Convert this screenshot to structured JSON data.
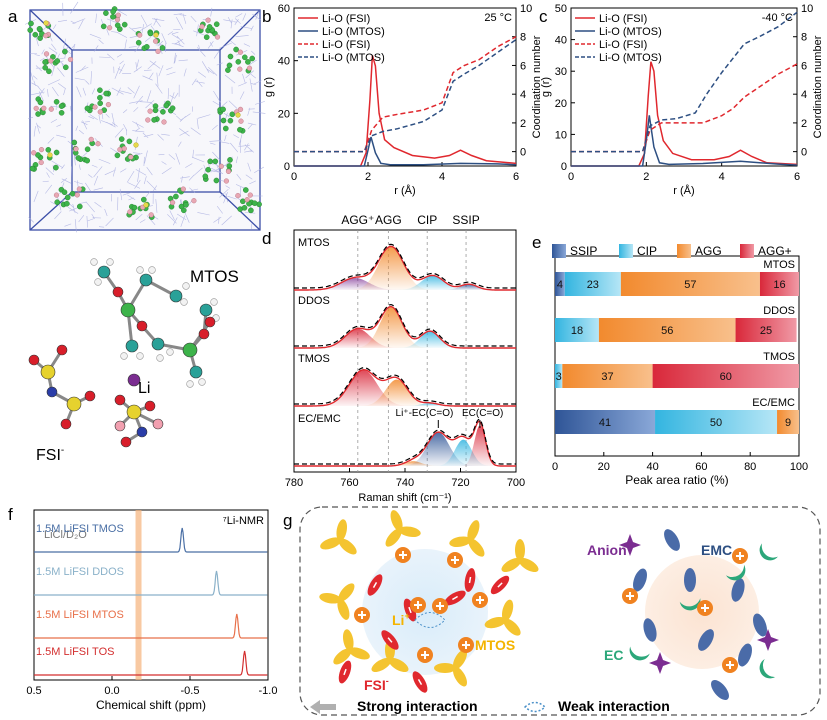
{
  "panel_labels": {
    "a": "a",
    "b": "b",
    "c": "c",
    "d": "d",
    "e": "e",
    "f": "f",
    "g": "g"
  },
  "colors": {
    "red": "#e0282e",
    "navy": "#2d4f82",
    "box": "#3c4fa8",
    "ssip": "#2f5597",
    "cip": "#33b5e0",
    "agg": "#f28a2e",
    "aggp": "#d9283a",
    "orange": "#f08220",
    "yellow": "#f4c430",
    "purple": "#7b2d91",
    "green": "#2ca77a",
    "nmr_tmos": "#4a6fa5",
    "nmr_ddos": "#8ab1c9",
    "nmr_mtos": "#e8704a",
    "nmr_tos": "#d32f2f"
  },
  "molecule_labels": {
    "mtos": "MTOS",
    "li": "Li",
    "fsi": "FSI",
    "fsi_sup": "-"
  },
  "chart_data": [
    {
      "id": "b",
      "type": "line",
      "title": "25 °C",
      "xlabel": "r (Å)",
      "ylabel": "g (r)",
      "y2label": "Coordination number",
      "xlim": [
        0,
        6
      ],
      "ylim": [
        0,
        60
      ],
      "y2lim": [
        -1,
        10
      ],
      "xticks": [
        0,
        2,
        4,
        6
      ],
      "yticks": [
        0,
        20,
        40,
        60
      ],
      "y2ticks": [
        0,
        2,
        4,
        6,
        8,
        10
      ],
      "legend": [
        "Li-O (FSI)",
        "Li-O (MTOS)",
        "Li-O (FSI)",
        "Li-O (MTOS)"
      ],
      "series": [
        {
          "name": "Li-O (FSI)",
          "axis": "left",
          "style": "solid",
          "color": "#e0282e",
          "x": [
            0,
            1.8,
            1.95,
            2.05,
            2.12,
            2.2,
            2.3,
            2.45,
            2.7,
            3.2,
            3.8,
            4.2,
            4.5,
            4.8,
            5.2,
            6
          ],
          "y": [
            0,
            0,
            5,
            25,
            42,
            38,
            20,
            10,
            7,
            4,
            3,
            4,
            6,
            4,
            2,
            1
          ]
        },
        {
          "name": "Li-O (MTOS)",
          "axis": "left",
          "style": "solid",
          "color": "#2d4f82",
          "x": [
            0,
            1.9,
            2.0,
            2.08,
            2.2,
            2.35,
            2.6,
            3.5,
            4.5,
            5.5,
            6
          ],
          "y": [
            0,
            0,
            6,
            11,
            5,
            1,
            0.5,
            0.5,
            1,
            0.8,
            0.5
          ]
        },
        {
          "name": "Li-O (FSI)",
          "axis": "right",
          "style": "dashed",
          "color": "#e0282e",
          "x": [
            0,
            1.9,
            2.1,
            2.4,
            2.8,
            3.5,
            4.0,
            4.3,
            4.6,
            5.0,
            5.5,
            6
          ],
          "y": [
            0,
            0,
            1.5,
            2.4,
            2.6,
            2.9,
            3.4,
            5.5,
            6.0,
            6.4,
            7.3,
            8.0
          ]
        },
        {
          "name": "Li-O (MTOS)",
          "axis": "right",
          "style": "dashed",
          "color": "#2d4f82",
          "x": [
            0,
            1.9,
            2.1,
            2.4,
            2.8,
            3.5,
            4.0,
            4.3,
            4.6,
            5.0,
            5.5,
            6
          ],
          "y": [
            0,
            0,
            1.1,
            1.4,
            1.6,
            2.1,
            2.9,
            4.9,
            5.4,
            6.0,
            6.9,
            7.8
          ]
        }
      ]
    },
    {
      "id": "c",
      "type": "line",
      "title": "-40 °C",
      "xlabel": "r (Å)",
      "ylabel": "g (r)",
      "y2label": "Coordination number",
      "xlim": [
        0,
        6
      ],
      "ylim": [
        0,
        50
      ],
      "y2lim": [
        -1,
        10
      ],
      "xticks": [
        0,
        2,
        4,
        6
      ],
      "yticks": [
        0,
        10,
        20,
        30,
        40,
        50
      ],
      "y2ticks": [
        0,
        2,
        4,
        6,
        8,
        10
      ],
      "legend": [
        "Li-O (FSI)",
        "Li-O (MTOS)",
        "Li-O (FSI)",
        "Li-O (MTOS)"
      ],
      "series": [
        {
          "name": "Li-O (FSI)",
          "axis": "left",
          "style": "solid",
          "color": "#e0282e",
          "x": [
            0,
            1.8,
            1.95,
            2.05,
            2.12,
            2.2,
            2.3,
            2.45,
            2.7,
            3.2,
            3.8,
            4.2,
            4.5,
            4.8,
            5.2,
            6
          ],
          "y": [
            0,
            0,
            4,
            22,
            33,
            30,
            16,
            8,
            4,
            2,
            2,
            3,
            5,
            3,
            1,
            0.5
          ]
        },
        {
          "name": "Li-O (MTOS)",
          "axis": "left",
          "style": "solid",
          "color": "#2d4f82",
          "x": [
            0,
            1.9,
            2.0,
            2.08,
            2.2,
            2.35,
            2.6,
            3.5,
            4.5,
            5.5,
            6
          ],
          "y": [
            0,
            0,
            8,
            16,
            6,
            1,
            0.5,
            0.8,
            1.5,
            0.6,
            0.3
          ]
        },
        {
          "name": "Li-O (FSI)",
          "axis": "right",
          "style": "dashed",
          "color": "#e0282e",
          "x": [
            0,
            1.9,
            2.1,
            2.4,
            2.8,
            3.5,
            4.0,
            4.3,
            4.6,
            5.0,
            5.5,
            6
          ],
          "y": [
            0,
            0,
            1.5,
            2.0,
            2.0,
            2.0,
            2.5,
            3.0,
            3.8,
            4.5,
            5.4,
            6.1
          ]
        },
        {
          "name": "Li-O (MTOS)",
          "axis": "right",
          "style": "dashed",
          "color": "#2d4f82",
          "x": [
            0,
            1.9,
            2.1,
            2.4,
            2.8,
            3.3,
            3.6,
            4.0,
            4.3,
            4.6,
            5.0,
            5.5,
            6
          ],
          "y": [
            0,
            0,
            1.8,
            2.2,
            2.3,
            2.7,
            4.0,
            5.5,
            6.5,
            7.5,
            8.0,
            8.7,
            9.7
          ]
        }
      ]
    },
    {
      "id": "d",
      "type": "area",
      "xlabel": "Raman shift (cm⁻¹)",
      "xlim": [
        780,
        700
      ],
      "xticks": [
        780,
        760,
        740,
        720,
        700
      ],
      "reference_lines": [
        {
          "label": "AGG⁺",
          "x": 757
        },
        {
          "label": "AGG",
          "x": 746
        },
        {
          "label": "CIP",
          "x": 732
        },
        {
          "label": "SSIP",
          "x": 718
        }
      ],
      "traces": [
        {
          "label": "MTOS",
          "components": [
            {
              "center": 758,
              "height": 0.25,
              "width": 10,
              "color": "#7b2d91"
            },
            {
              "center": 745,
              "height": 0.9,
              "width": 9,
              "color": "#f28a2e"
            },
            {
              "center": 730,
              "height": 0.3,
              "width": 8,
              "color": "#33b5e0"
            },
            {
              "center": 717,
              "height": 0.12,
              "width": 6,
              "color": "#2f5597"
            }
          ]
        },
        {
          "label": "DDOS",
          "components": [
            {
              "center": 757,
              "height": 0.4,
              "width": 9,
              "color": "#d9283a"
            },
            {
              "center": 745,
              "height": 0.85,
              "width": 8,
              "color": "#f28a2e"
            },
            {
              "center": 731,
              "height": 0.35,
              "width": 7,
              "color": "#33b5e0"
            }
          ]
        },
        {
          "label": "TMOS",
          "components": [
            {
              "center": 755,
              "height": 0.75,
              "width": 10,
              "color": "#d9283a"
            },
            {
              "center": 743,
              "height": 0.55,
              "width": 8,
              "color": "#f28a2e"
            },
            {
              "center": 731,
              "height": 0.06,
              "width": 6,
              "color": "#33b5e0"
            }
          ]
        },
        {
          "label": "EC/EMC",
          "components": [
            {
              "center": 737,
              "height": 0.1,
              "width": 6,
              "color": "#f28a2e"
            },
            {
              "center": 728,
              "height": 0.7,
              "width": 8,
              "color": "#2f5597"
            },
            {
              "center": 719,
              "height": 0.55,
              "width": 6,
              "color": "#33b5e0"
            },
            {
              "center": 713,
              "height": 0.85,
              "width": 4,
              "color": "#d9283a"
            }
          ]
        }
      ],
      "annotations": [
        "Li⁺-EC(C=O)",
        "EC(C=O)"
      ]
    },
    {
      "id": "e",
      "type": "bar",
      "orientation": "horizontal",
      "stacked": true,
      "xlabel": "Peak area ratio (%)",
      "xlim": [
        0,
        100
      ],
      "xticks": [
        0,
        20,
        40,
        60,
        80,
        100
      ],
      "legend": [
        "SSIP",
        "CIP",
        "AGG",
        "AGG+"
      ],
      "categories": [
        "MTOS",
        "DDOS",
        "TMOS",
        "EC/EMC"
      ],
      "series": [
        {
          "name": "SSIP",
          "color": "#2f5597",
          "values": [
            4,
            0,
            0,
            41
          ]
        },
        {
          "name": "CIP",
          "color": "#33b5e0",
          "values": [
            23,
            18,
            3,
            50
          ]
        },
        {
          "name": "AGG",
          "color": "#f28a2e",
          "values": [
            57,
            56,
            37,
            9
          ]
        },
        {
          "name": "AGG+",
          "color": "#d9283a",
          "values": [
            16,
            25,
            60,
            0
          ]
        }
      ]
    },
    {
      "id": "f",
      "type": "line",
      "xlabel": "Chemical shift (ppm)",
      "title": "⁷Li-NMR",
      "xlim": [
        0.5,
        -1.0
      ],
      "xticks": [
        0.5,
        0.0,
        -0.5,
        -1.0
      ],
      "xticklabels": [
        "0.5",
        "0.0",
        "-0.5",
        "-1.0"
      ],
      "reference": {
        "label": "LiCl/D₂O",
        "x": -0.17
      },
      "series": [
        {
          "name": "1.5M LiFSI TMOS",
          "peak": -0.45,
          "color": "#4a6fa5"
        },
        {
          "name": "1.5M LiFSI DDOS",
          "peak": -0.67,
          "color": "#8ab1c9"
        },
        {
          "name": "1.5M LiFSI MTOS",
          "peak": -0.8,
          "color": "#e8704a"
        },
        {
          "name": "1.5M LiFSI TOS",
          "peak": -0.85,
          "color": "#d32f2f"
        }
      ]
    }
  ],
  "schematic": {
    "left_labels": {
      "li": "Li",
      "li_sup": "+",
      "mtos": "MTOS",
      "fsi": "FSI",
      "fsi_sup": "-"
    },
    "right_labels": {
      "anion": "Anion",
      "emc": "EMC",
      "ec": "EC"
    },
    "legend": {
      "strong": "Strong interaction",
      "weak": "Weak interaction"
    }
  }
}
